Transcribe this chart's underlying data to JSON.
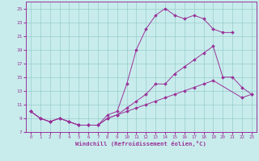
{
  "xlabel": "Windchill (Refroidissement éolien,°C)",
  "bg_color": "#c8ecec",
  "line_color": "#993399",
  "grid_color": "#99cccc",
  "xlim": [
    -0.5,
    23.5
  ],
  "ylim": [
    7,
    26
  ],
  "xticks": [
    0,
    1,
    2,
    3,
    4,
    5,
    6,
    7,
    8,
    9,
    10,
    11,
    12,
    13,
    14,
    15,
    16,
    17,
    18,
    19,
    20,
    21,
    22,
    23
  ],
  "yticks": [
    7,
    9,
    11,
    13,
    15,
    17,
    19,
    21,
    23,
    25
  ],
  "line1_x": [
    0,
    1,
    2,
    3,
    4,
    5,
    6,
    7,
    8,
    9,
    10,
    11,
    12,
    13,
    14,
    15,
    16,
    17,
    18,
    19,
    20,
    21
  ],
  "line1_y": [
    10,
    9,
    8.5,
    9,
    8.5,
    8,
    8,
    8,
    9.5,
    10,
    14,
    19,
    22,
    24,
    25,
    24,
    23.5,
    24,
    23.5,
    22,
    21.5,
    21.5
  ],
  "line2_x": [
    0,
    1,
    2,
    3,
    4,
    5,
    6,
    7,
    8,
    9,
    10,
    11,
    12,
    13,
    14,
    15,
    16,
    17,
    18,
    19,
    20,
    21,
    22,
    23
  ],
  "line2_y": [
    10,
    9,
    8.5,
    9,
    8.5,
    8,
    8,
    8,
    9,
    9.5,
    10.5,
    11.5,
    12.5,
    14,
    14,
    15.5,
    16.5,
    17.5,
    18.5,
    19.5,
    15,
    15,
    13.5,
    12.5
  ],
  "line3_x": [
    0,
    1,
    2,
    3,
    4,
    5,
    6,
    7,
    8,
    9,
    10,
    11,
    12,
    13,
    14,
    15,
    16,
    17,
    18,
    19,
    22,
    23
  ],
  "line3_y": [
    10,
    9,
    8.5,
    9,
    8.5,
    8,
    8,
    8,
    9,
    9.5,
    10,
    10.5,
    11,
    11.5,
    12,
    12.5,
    13,
    13.5,
    14,
    14.5,
    12,
    12.5
  ]
}
